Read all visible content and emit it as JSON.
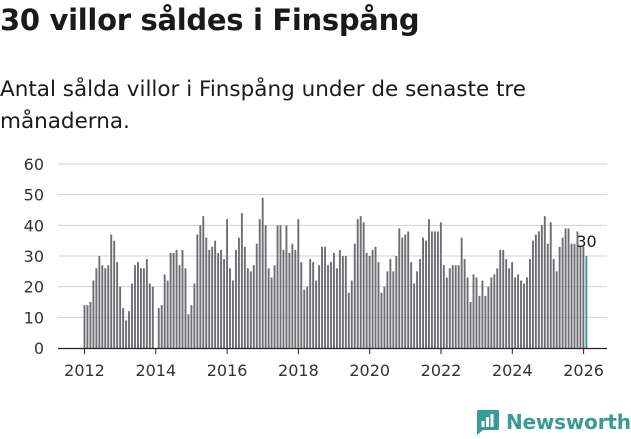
{
  "title": "30 villor såldes i Finspång",
  "subtitle": "Antal sålda villor i Finspång under de senaste tre månaderna.",
  "brand": {
    "name": "Newsworthy",
    "icon": "newsworthy-chart-icon"
  },
  "colors": {
    "bar": "#6e6d72",
    "highlight": "#3a9a96",
    "grid": "#d0d0d0",
    "text": "#333333"
  },
  "chart_data": {
    "type": "bar",
    "title": "30 villor såldes i Finspång",
    "xlabel": "",
    "ylabel": "",
    "ylim": [
      0,
      60
    ],
    "yticks": [
      0,
      10,
      20,
      30,
      40,
      50,
      60
    ],
    "xticks": [
      2012,
      2014,
      2016,
      2018,
      2020,
      2022,
      2024,
      2026
    ],
    "x_start": 2012.0,
    "x_step": 0.0833,
    "values": [
      14,
      14,
      15,
      22,
      26,
      30,
      27,
      26,
      27,
      37,
      35,
      28,
      20,
      13,
      9,
      12,
      21,
      27,
      28,
      26,
      26,
      29,
      21,
      20,
      0,
      13,
      14,
      24,
      22,
      31,
      31,
      32,
      27,
      32,
      26,
      11,
      14,
      21,
      37,
      40,
      43,
      36,
      32,
      33,
      35,
      31,
      32,
      29,
      42,
      26,
      22,
      32,
      36,
      44,
      33,
      26,
      25,
      27,
      34,
      42,
      49,
      40,
      26,
      23,
      27,
      40,
      40,
      32,
      40,
      31,
      34,
      32,
      42,
      28,
      19,
      20,
      29,
      28,
      22,
      27,
      33,
      33,
      27,
      28,
      31,
      26,
      32,
      30,
      30,
      18,
      22,
      34,
      42,
      43,
      41,
      31,
      30,
      32,
      33,
      28,
      18,
      20,
      25,
      29,
      25,
      30,
      39,
      36,
      37,
      38,
      28,
      21,
      25,
      29,
      36,
      35,
      42,
      38,
      38,
      38,
      41,
      27,
      23,
      26,
      27,
      27,
      27,
      36,
      29,
      23,
      15,
      24,
      23,
      17,
      22,
      17,
      20,
      23,
      24,
      26,
      32,
      32,
      29,
      26,
      28,
      23,
      24,
      22,
      21,
      23,
      29,
      35,
      37,
      38,
      40,
      43,
      34,
      41,
      29,
      25,
      33,
      36,
      39,
      39,
      34,
      34,
      38,
      33,
      33,
      30
    ],
    "last_value_label": "30"
  }
}
